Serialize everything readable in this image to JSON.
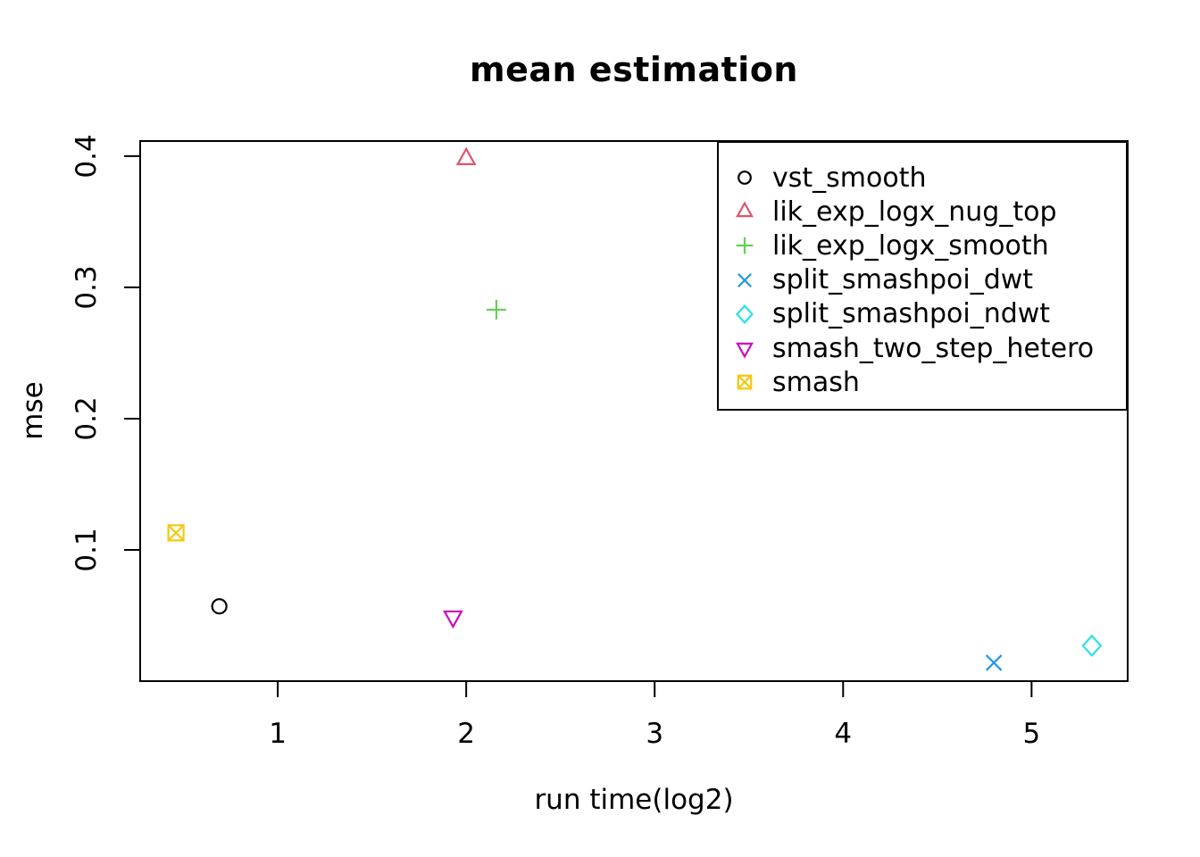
{
  "chart_data": {
    "type": "scatter",
    "title": "mean estimation",
    "xlabel": "run time(log2)",
    "ylabel": "mse",
    "xlim": [
      0.27,
      5.51
    ],
    "ylim": [
      0,
      0.4115
    ],
    "x_ticks": [
      1,
      2,
      3,
      4,
      5
    ],
    "y_ticks": [
      0.1,
      0.2,
      0.3,
      0.4
    ],
    "grid": false,
    "legend_position": "top-right",
    "series": [
      {
        "name": "vst_smooth",
        "marker": "circle",
        "color": "#000000",
        "points": [
          [
            0.69,
            0.057
          ]
        ]
      },
      {
        "name": "lik_exp_logx_nug_top",
        "marker": "triangle-up",
        "color": "#DF536B",
        "points": [
          [
            2.0,
            0.398
          ]
        ]
      },
      {
        "name": "lik_exp_logx_smooth",
        "marker": "plus",
        "color": "#61D04F",
        "points": [
          [
            2.16,
            0.283
          ]
        ]
      },
      {
        "name": "split_smashpoi_dwt",
        "marker": "x",
        "color": "#2297E6",
        "points": [
          [
            4.8,
            0.014
          ]
        ]
      },
      {
        "name": "split_smashpoi_ndwt",
        "marker": "diamond",
        "color": "#28E2E5",
        "points": [
          [
            5.32,
            0.027
          ]
        ]
      },
      {
        "name": "smash_two_step_hetero",
        "marker": "triangle-down",
        "color": "#CD0BBC",
        "points": [
          [
            1.93,
            0.049
          ]
        ]
      },
      {
        "name": "smash",
        "marker": "square-x",
        "color": "#F5C710",
        "points": [
          [
            0.46,
            0.113
          ]
        ]
      }
    ]
  }
}
